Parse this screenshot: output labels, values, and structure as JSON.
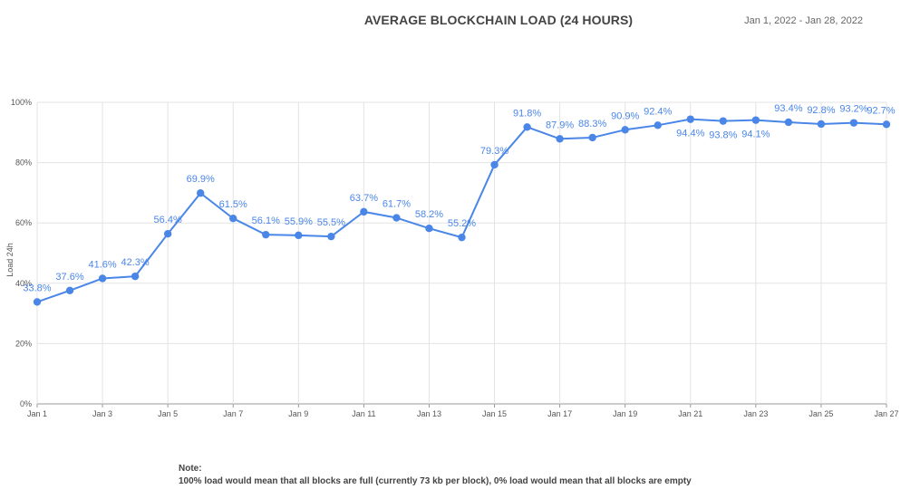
{
  "header": {
    "title": "AVERAGE BLOCKCHAIN LOAD (24 HOURS)",
    "date_range": "Jan 1, 2022 - Jan 28, 2022"
  },
  "note": {
    "heading": "Note:",
    "text": "100% load would mean that all blocks are full (currently 73 kb per block), 0% load would mean that all blocks are empty"
  },
  "chart_data": {
    "type": "line",
    "title": "AVERAGE BLOCKCHAIN LOAD (24 HOURS)",
    "ylabel": "Load 24h",
    "xlabel": "",
    "ylim": [
      0,
      100
    ],
    "y_ticks": [
      0,
      20,
      40,
      60,
      80,
      100
    ],
    "y_tick_labels": [
      "0%",
      "20%",
      "40%",
      "60%",
      "80%",
      "100%"
    ],
    "x_tick_labels": [
      "Jan 1",
      "Jan 3",
      "Jan 5",
      "Jan 7",
      "Jan 9",
      "Jan 11",
      "Jan 13",
      "Jan 15",
      "Jan 17",
      "Jan 19",
      "Jan 21",
      "Jan 23",
      "Jan 25",
      "Jan 27"
    ],
    "categories": [
      "Jan 1",
      "Jan 2",
      "Jan 3",
      "Jan 4",
      "Jan 5",
      "Jan 6",
      "Jan 7",
      "Jan 8",
      "Jan 9",
      "Jan 10",
      "Jan 11",
      "Jan 12",
      "Jan 13",
      "Jan 14",
      "Jan 15",
      "Jan 16",
      "Jan 17",
      "Jan 18",
      "Jan 19",
      "Jan 20",
      "Jan 21",
      "Jan 22",
      "Jan 23",
      "Jan 24",
      "Jan 25",
      "Jan 26",
      "Jan 27"
    ],
    "series": [
      {
        "values": [
          33.8,
          37.6,
          41.6,
          42.3,
          56.4,
          69.9,
          61.5,
          56.1,
          55.9,
          55.5,
          63.7,
          61.7,
          58.2,
          55.2,
          79.3,
          91.8,
          87.9,
          88.3,
          90.9,
          92.4,
          94.4,
          93.8,
          94.1,
          93.4,
          92.8,
          93.2,
          92.7
        ],
        "labels": [
          "33.8%",
          "37.6%",
          "41.6%",
          "42.3%",
          "56.4%",
          "69.9%",
          "61.5%",
          "56.1%",
          "55.9%",
          "55.5%",
          "63.7%",
          "61.7%",
          "58.2%",
          "55.2%",
          "79.3%",
          "91.8%",
          "87.9%",
          "88.3%",
          "90.9%",
          "92.4%",
          "94.4%",
          "93.8%",
          "94.1%",
          "93.4%",
          "92.8%",
          "93.2%",
          "92.7%"
        ],
        "color": "#4a86e8"
      }
    ],
    "grid": true,
    "legend": "none"
  }
}
